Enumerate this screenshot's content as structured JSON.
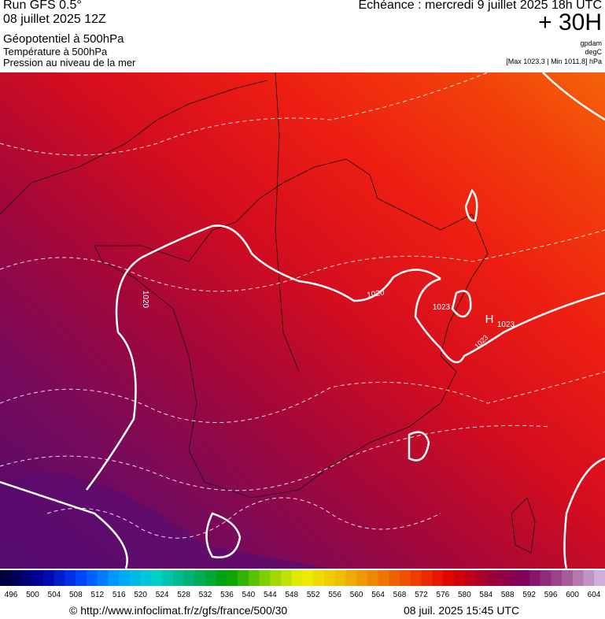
{
  "header": {
    "left": [
      "Run GFS 0.5°",
      "08 juillet 2025 12Z",
      "Géopotentiel à 500hPa",
      "Température à 500hPa",
      "Pression au niveau de la mer"
    ],
    "right": [
      "Echéance : mercredi 9 juillet 2025 18h UTC",
      "+ 30H",
      "gpdam",
      "degC",
      "[Max 1023.3 | Min 1011.8] hPa"
    ]
  },
  "map": {
    "labels": [
      "1020",
      "1020",
      "1023",
      "H",
      "1023",
      "1023"
    ]
  },
  "colorbar": {
    "labels": [
      496,
      500,
      504,
      508,
      512,
      516,
      520,
      524,
      528,
      532,
      536,
      540,
      544,
      548,
      552,
      556,
      560,
      564,
      568,
      572,
      576,
      580,
      584,
      588,
      592,
      596,
      600,
      604
    ]
  },
  "footer": {
    "left": "© http://www.infoclimat.fr/z/gfs/france/500/30",
    "right": "08 juil. 2025 15:45 UTC"
  }
}
